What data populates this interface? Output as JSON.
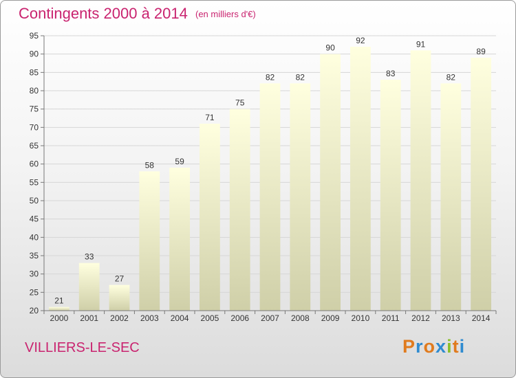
{
  "header": {
    "title": "Contingents 2000 à 2014",
    "unit": "(en milliers d'€)"
  },
  "footer": {
    "commune": "VILLIERS-LE-SEC",
    "logo_letters": [
      "P",
      "r",
      "o",
      "x",
      "i",
      "t",
      "i"
    ],
    "logo_colors": [
      "#e07b1e",
      "#2f8bd0",
      "#e07b1e",
      "#2f8bd0",
      "#8bbf2a",
      "#e07b1e",
      "#2f8bd0"
    ]
  },
  "chart_data": {
    "type": "bar",
    "categories": [
      "2000",
      "2001",
      "2002",
      "2003",
      "2004",
      "2005",
      "2006",
      "2007",
      "2008",
      "2009",
      "2010",
      "2011",
      "2012",
      "2013",
      "2014"
    ],
    "values": [
      21,
      33,
      27,
      58,
      59,
      71,
      75,
      82,
      82,
      90,
      92,
      83,
      91,
      82,
      89
    ],
    "ylim": [
      20,
      95
    ],
    "yticks": [
      20,
      25,
      30,
      35,
      40,
      45,
      50,
      55,
      60,
      65,
      70,
      75,
      80,
      85,
      90,
      95
    ],
    "grid": true,
    "bar_colors": {
      "top": "#ffffdf",
      "bottom": "#cfcfa8"
    },
    "accent": "#c9236f"
  }
}
